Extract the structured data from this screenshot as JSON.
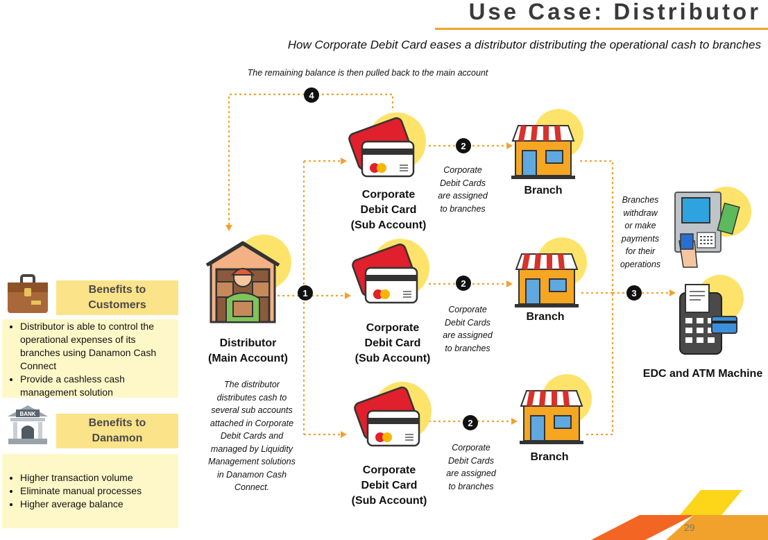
{
  "title": "Use Case: Distributor",
  "subtitle": "How Corporate Debit Card eases a distributor distributing the operational cash to branches",
  "step4_note": "The remaining balance is then pulled back to the main account",
  "steps": {
    "one": "1",
    "two": "2",
    "three": "3",
    "four": "4"
  },
  "distributor": {
    "label_line1": "Distributor",
    "label_line2": "(Main Account)"
  },
  "distributor_note": [
    "The distributor",
    "distributes cash to",
    "several sub accounts",
    "attached in Corporate",
    "Debit Cards and",
    "managed by Liquidity",
    "Management solutions",
    "in Danamon Cash",
    "Connect."
  ],
  "cards": [
    {
      "line1": "Corporate",
      "line2": "Debit Card",
      "line3": "(Sub Account)"
    },
    {
      "line1": "Corporate",
      "line2": "Debit Card",
      "line3": "(Sub Account)"
    },
    {
      "line1": "Corporate",
      "line2": "Debit Card",
      "line3": "(Sub Account)"
    }
  ],
  "assign_notes": [
    [
      "Corporate",
      "Debit Cards",
      "are assigned",
      "to branches"
    ],
    [
      "Corporate",
      "Debit Cards",
      "are assigned",
      "to branches"
    ],
    [
      "Corporate",
      "Debit Cards",
      "are assigned",
      "to branches"
    ]
  ],
  "branches": [
    "Branch",
    "Branch",
    "Branch"
  ],
  "branches_note": [
    "Branches",
    "withdraw",
    "or make",
    "payments",
    "for their",
    "operations"
  ],
  "edc_label": "EDC and ATM Machine",
  "benefits_customers": {
    "heading_line1": "Benefits to",
    "heading_line2": "Customers",
    "items": [
      "Distributor is able to control the operational expenses of its branches using Danamon Cash Connect",
      "Provide a cashless cash management solution"
    ]
  },
  "benefits_danamon": {
    "heading_line1": "Benefits to",
    "heading_line2": "Danamon",
    "bank_sign": "BANK",
    "items": [
      "Higher transaction volume",
      "Eliminate manual processes",
      "Higher average balance"
    ]
  },
  "page_number": "29",
  "colors": {
    "accent_orange": "#f1a22c",
    "circle_yellow": "#fde36a",
    "card_red": "#e0202c",
    "box_head": "#fbe38a",
    "box_body": "#fef7c8",
    "awning_red": "#d9312b"
  }
}
